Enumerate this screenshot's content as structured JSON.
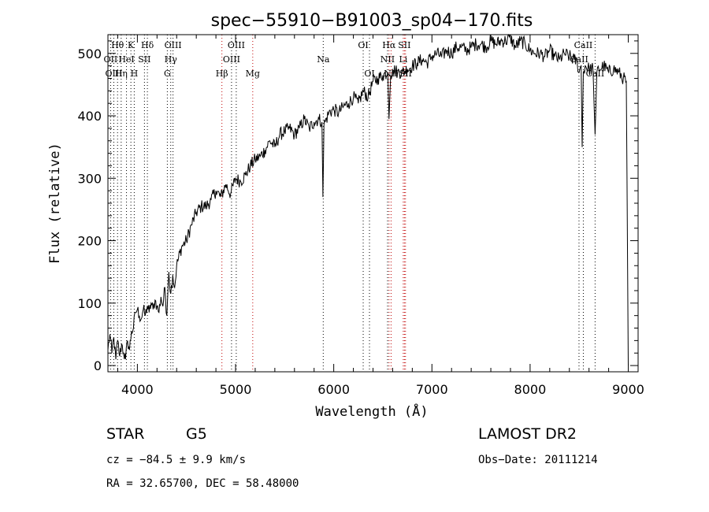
{
  "chart_data": {
    "type": "line",
    "title": "spec−55910−B91003_sp04−170.fits",
    "xlabel": "Wavelength (Å)",
    "ylabel": "Flux (relative)",
    "xlim": [
      3700,
      9100
    ],
    "ylim": [
      -10,
      530
    ],
    "xticks": [
      4000,
      5000,
      6000,
      7000,
      8000,
      9000
    ],
    "yticks": [
      0,
      100,
      200,
      300,
      400,
      500
    ],
    "grid": false,
    "series": [
      {
        "x": [
          3700,
          3720,
          3740,
          3760,
          3780,
          3800,
          3820,
          3840,
          3860,
          3880,
          3900,
          3920,
          3940,
          3960,
          3980,
          4000,
          4020,
          4040,
          4060,
          4080,
          4100,
          4120,
          4140,
          4160,
          4180,
          4200,
          4220,
          4240,
          4260,
          4280,
          4300,
          4320,
          4340,
          4360,
          4380,
          4400,
          4450,
          4500,
          4550,
          4600,
          4650,
          4700,
          4750,
          4800,
          4850,
          4900,
          4950,
          5000,
          5050,
          5100,
          5150,
          5200,
          5250,
          5300,
          5350,
          5400,
          5450,
          5500,
          5550,
          5600,
          5650,
          5700,
          5750,
          5800,
          5850,
          5880,
          5890,
          5900,
          5950,
          6000,
          6050,
          6100,
          6150,
          6200,
          6250,
          6300,
          6350,
          6400,
          6450,
          6500,
          6550,
          6563,
          6580,
          6600,
          6650,
          6700,
          6750,
          6800,
          6850,
          6900,
          6950,
          7000,
          7050,
          7100,
          7150,
          7200,
          7250,
          7300,
          7350,
          7400,
          7450,
          7500,
          7550,
          7600,
          7650,
          7700,
          7750,
          7800,
          7850,
          7900,
          7950,
          8000,
          8050,
          8100,
          8150,
          8200,
          8250,
          8300,
          8350,
          8400,
          8450,
          8480,
          8500,
          8520,
          8530,
          8542,
          8560,
          8600,
          8640,
          8662,
          8680,
          8700,
          8750,
          8800,
          8850,
          8900,
          8950,
          8980,
          9000
        ],
        "y": [
          25,
          50,
          20,
          45,
          10,
          40,
          15,
          35,
          20,
          10,
          40,
          25,
          55,
          60,
          85,
          90,
          80,
          75,
          90,
          80,
          95,
          85,
          100,
          90,
          105,
          95,
          85,
          110,
          95,
          125,
          80,
          150,
          115,
          145,
          125,
          160,
          190,
          200,
          225,
          245,
          255,
          255,
          265,
          280,
          270,
          290,
          275,
          300,
          295,
          305,
          320,
          330,
          335,
          345,
          360,
          350,
          370,
          375,
          380,
          370,
          380,
          395,
          380,
          390,
          395,
          390,
          270,
          385,
          405,
          410,
          405,
          415,
          420,
          430,
          420,
          440,
          430,
          455,
          460,
          465,
          470,
          395,
          465,
          475,
          470,
          470,
          475,
          480,
          485,
          490,
          485,
          495,
          500,
          495,
          505,
          500,
          510,
          510,
          505,
          510,
          515,
          515,
          510,
          520,
          515,
          520,
          520,
          525,
          510,
          520,
          515,
          505,
          500,
          500,
          495,
          505,
          495,
          490,
          500,
          495,
          490,
          485,
          470,
          480,
          350,
          470,
          480,
          475,
          475,
          370,
          470,
          475,
          480,
          470,
          475,
          470,
          460,
          455,
          0
        ],
        "color": "#000000"
      }
    ],
    "line_marks": [
      {
        "label": "Hθ",
        "x": 3798,
        "color": "#000000",
        "row": 0
      },
      {
        "label": "K",
        "x": 3934,
        "color": "#000000",
        "row": 0
      },
      {
        "label": "Hδ",
        "x": 4102,
        "color": "#000000",
        "row": 0
      },
      {
        "label": "OIII",
        "x": 4363,
        "color": "#000000",
        "row": 0
      },
      {
        "label": "OIII",
        "x": 5007,
        "color": "#000000",
        "row": 0
      },
      {
        "label": "OI",
        "x": 6300,
        "color": "#000000",
        "row": 0
      },
      {
        "label": "Hα",
        "x": 6563,
        "color": "#c00000",
        "row": 0
      },
      {
        "label": "SII",
        "x": 6720,
        "color": "#c00000",
        "row": 0
      },
      {
        "label": "CaII",
        "x": 8542,
        "color": "#000000",
        "row": 0
      },
      {
        "label": "OII",
        "x": 3727,
        "color": "#000000",
        "row": 1
      },
      {
        "label": "HeI",
        "x": 3889,
        "color": "#000000",
        "row": 1
      },
      {
        "label": "SII",
        "x": 4072,
        "color": "#000000",
        "row": 1
      },
      {
        "label": "Hγ",
        "x": 4340,
        "color": "#000000",
        "row": 1
      },
      {
        "label": "OIII",
        "x": 4959,
        "color": "#000000",
        "row": 1
      },
      {
        "label": "Na",
        "x": 5893,
        "color": "#000000",
        "row": 1
      },
      {
        "label": "NII",
        "x": 6548,
        "color": "#000000",
        "row": 1
      },
      {
        "label": "Li",
        "x": 6708,
        "color": "#c00000",
        "row": 1
      },
      {
        "label": "CaII",
        "x": 8498,
        "color": "#000000",
        "row": 1
      },
      {
        "label": "OIII",
        "x": 3760,
        "color": "#000000",
        "row": 2
      },
      {
        "label": "Hη",
        "x": 3835,
        "color": "#000000",
        "row": 2
      },
      {
        "label": "H",
        "x": 3968,
        "color": "#000000",
        "row": 2
      },
      {
        "label": "G",
        "x": 4305,
        "color": "#000000",
        "row": 2
      },
      {
        "label": "Hβ",
        "x": 4861,
        "color": "#c00000",
        "row": 2
      },
      {
        "label": "Mg",
        "x": 5175,
        "color": "#c00000",
        "row": 2
      },
      {
        "label": "OI",
        "x": 6364,
        "color": "#000000",
        "row": 2
      },
      {
        "label": "NII",
        "x": 6584,
        "color": "#c00000",
        "row": 2
      },
      {
        "label": "SII",
        "x": 6731,
        "color": "#c00000",
        "row": 2
      },
      {
        "label": "CaII",
        "x": 8662,
        "color": "#000000",
        "row": 2
      }
    ]
  },
  "info": {
    "class_label": "STAR",
    "subclass": "G5",
    "survey": "LAMOST DR2",
    "cz": "cz = −84.5 ± 9.9 km/s",
    "obs_date": "Obs−Date: 20111214",
    "coords": "RA =  32.65700, DEC =  58.48000"
  }
}
